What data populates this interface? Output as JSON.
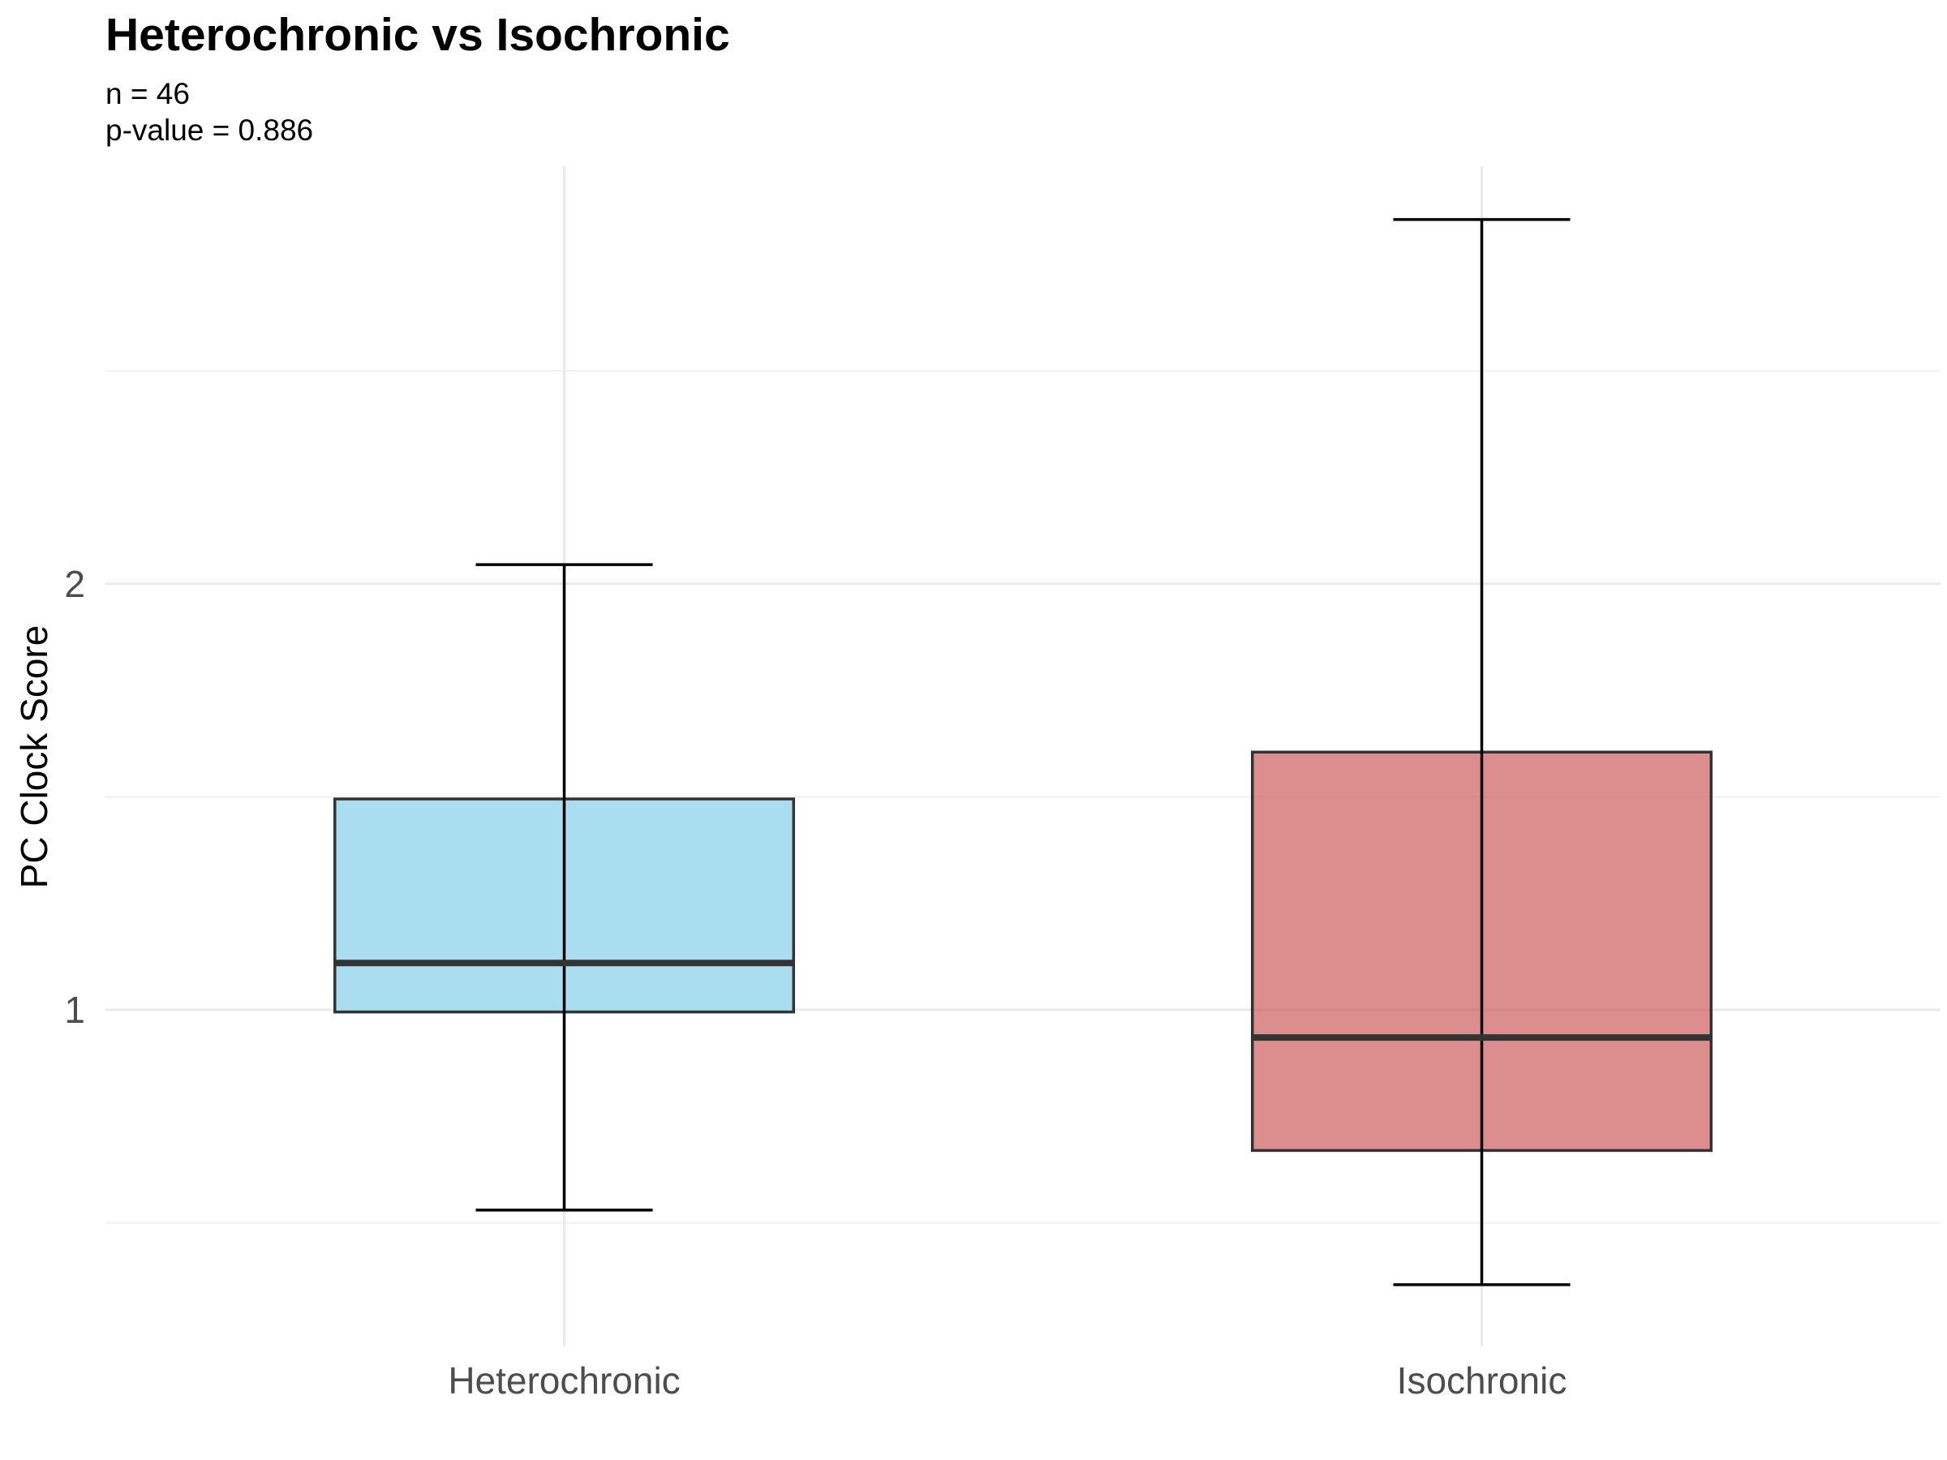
{
  "chart_data": {
    "type": "box",
    "title": "Heterochronic vs Isochronic",
    "subtitle_lines": [
      "n = 46",
      "p-value = 0.886"
    ],
    "xlabel": "",
    "ylabel": "PC Clock Score",
    "ylim": [
      0.21,
      2.98
    ],
    "y_ticks": [
      1,
      2
    ],
    "y_tick_labels": [
      "1",
      "2"
    ],
    "y_minor_gridlines": [
      0.5,
      1.5,
      2.5
    ],
    "grid": true,
    "categories": [
      "Heterochronic",
      "Isochronic"
    ],
    "boxes": [
      {
        "category": "Heterochronic",
        "whisker_low": 0.53,
        "q1": 0.995,
        "median": 1.11,
        "q3": 1.495,
        "whisker_high": 2.045,
        "color": "#87CEEB"
      },
      {
        "category": "Isochronic",
        "whisker_low": 0.355,
        "q1": 0.67,
        "median": 0.935,
        "q3": 1.605,
        "whisker_high": 2.855,
        "color": "#CD5C5C"
      }
    ]
  }
}
